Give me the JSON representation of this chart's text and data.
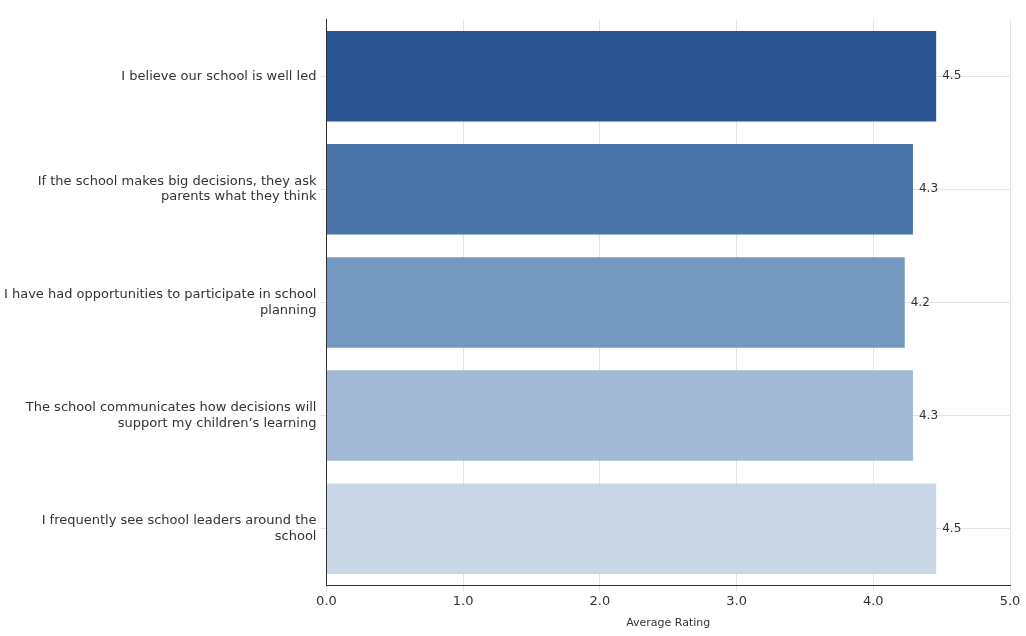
{
  "chart_data": {
    "type": "bar",
    "orientation": "horizontal",
    "xlabel": "Average Rating",
    "categories": [
      "I believe our school is well led",
      "If the school makes big decisions, they ask parents what they think",
      "I have had opportunities to participate in school planning",
      "The school communicates how decisions will support my children’s learning",
      "I frequently see school leaders around the school"
    ],
    "values": [
      4.46,
      4.29,
      4.23,
      4.29,
      4.46
    ],
    "value_labels": [
      "4.5",
      "4.3",
      "4.2",
      "4.3",
      "4.5"
    ],
    "colors": [
      "#2a5592",
      "#4a74a8",
      "#7598c0",
      "#a3b8d4",
      "#c8d6e6"
    ],
    "xlim": [
      0,
      5
    ],
    "xticks": [
      {
        "value": 0,
        "label": "0.0"
      },
      {
        "value": 1,
        "label": "1.0"
      },
      {
        "value": 2,
        "label": "2.0"
      },
      {
        "value": 3,
        "label": "3.0"
      },
      {
        "value": 4,
        "label": "4.0"
      },
      {
        "value": 5,
        "label": "5.0"
      }
    ],
    "grid": true,
    "legend": false
  }
}
